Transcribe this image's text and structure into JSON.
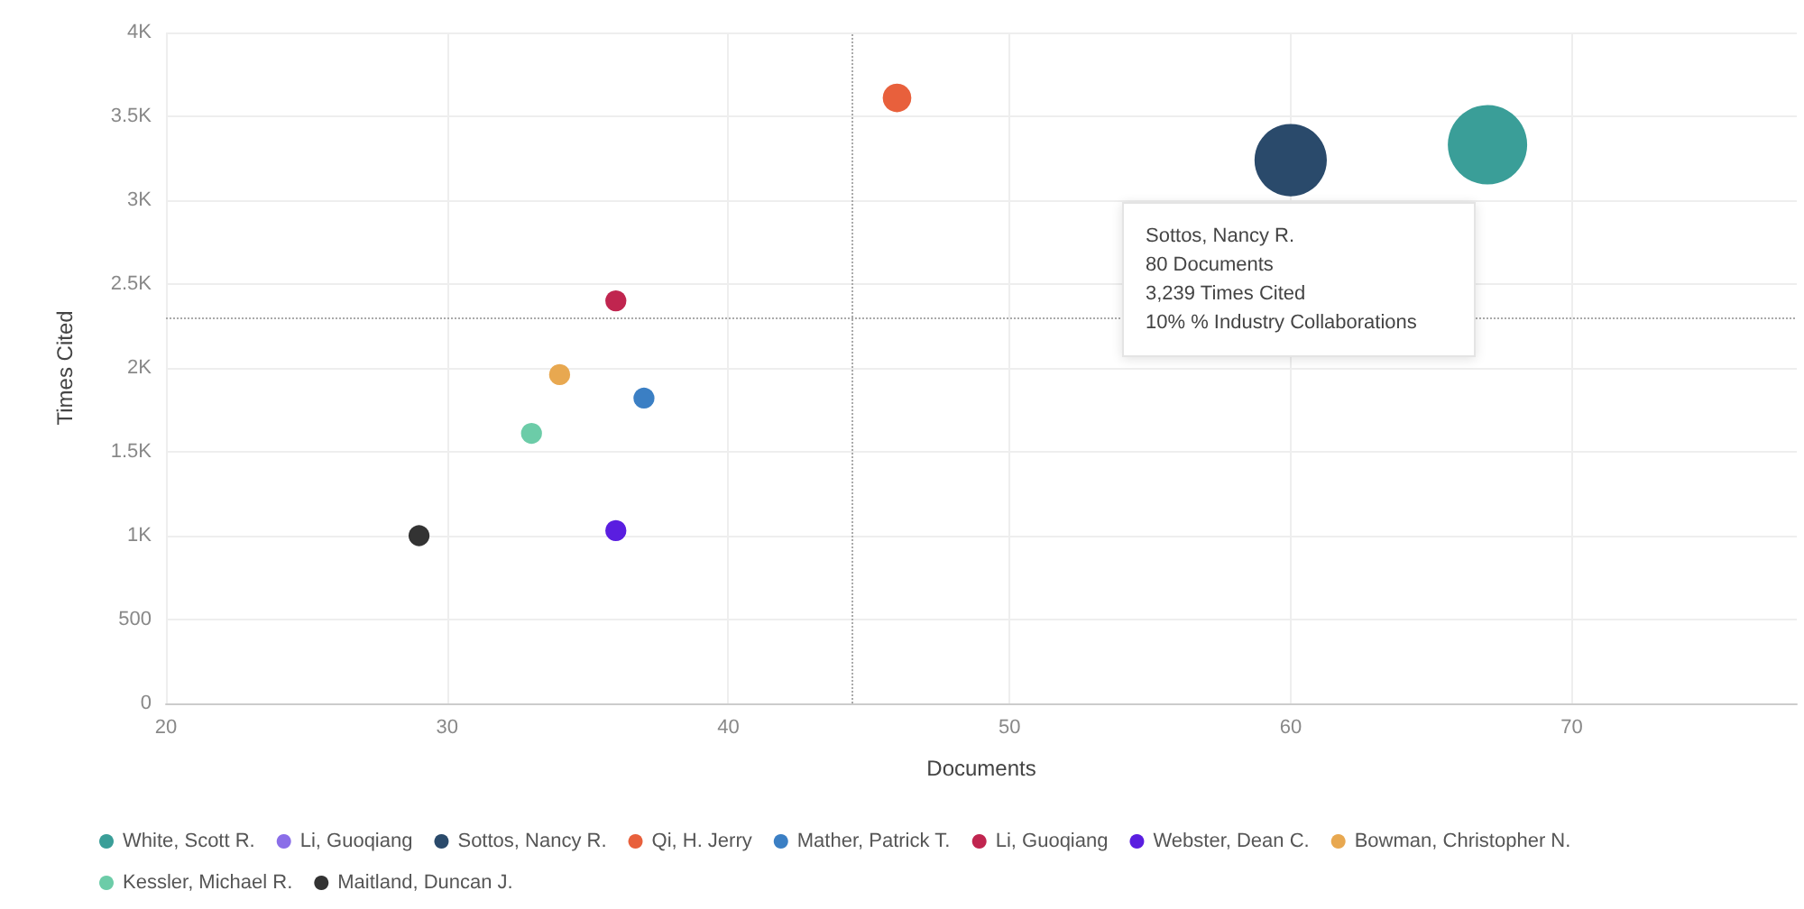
{
  "chart_data": {
    "type": "bubble",
    "xlabel": "Documents",
    "ylabel": "Times Cited",
    "xlim": [
      20,
      78
    ],
    "xticks": [
      20,
      30,
      40,
      50,
      60,
      70
    ],
    "ylim": [
      0,
      4000
    ],
    "yticks": [
      0,
      500,
      {
        "value": 1000,
        "label": "1K"
      },
      {
        "value": 1500,
        "label": "1.5K"
      },
      {
        "value": 2000,
        "label": "2K"
      },
      {
        "value": 2500,
        "label": "2.5K"
      },
      {
        "value": 3000,
        "label": "3K"
      },
      {
        "value": 3500,
        "label": "3.5K"
      },
      {
        "value": 4000,
        "label": "4K"
      }
    ],
    "grid": true,
    "legend": "bottom",
    "marker": "circle",
    "series": [
      {
        "name": "White, Scott R.",
        "color": "#3a9e98",
        "x": [
          67
        ],
        "values": [
          3330
        ],
        "sizes": [
          1
        ]
      },
      {
        "name": "Li, Guoqiang",
        "color": "#8a6ee8",
        "x": [
          null
        ],
        "values": [
          null
        ],
        "sizes": [
          null
        ]
      },
      {
        "name": "Sottos, Nancy R.",
        "color": "#2a4a6b",
        "x": [
          60
        ],
        "values": [
          3239
        ],
        "sizes": [
          0.83
        ]
      },
      {
        "name": "Qi, H. Jerry",
        "color": "#e8603c",
        "x": [
          46
        ],
        "values": [
          3610
        ],
        "sizes": [
          0.13
        ]
      },
      {
        "name": "Mather, Patrick T.",
        "color": "#3b7fc4",
        "x": [
          37
        ],
        "values": [
          1820
        ],
        "sizes": [
          0.07
        ]
      },
      {
        "name": "Li, Guoqiang",
        "color": "#c0254f",
        "x": [
          36
        ],
        "values": [
          2400
        ],
        "sizes": [
          0.07
        ]
      },
      {
        "name": "Webster, Dean C.",
        "color": "#5a1ee0",
        "x": [
          36
        ],
        "values": [
          1030
        ],
        "sizes": [
          0.07
        ]
      },
      {
        "name": "Bowman, Christopher N.",
        "color": "#e8a850",
        "x": [
          34
        ],
        "values": [
          1960
        ],
        "sizes": [
          0.07
        ]
      },
      {
        "name": "Kessler, Michael R.",
        "color": "#6ccca8",
        "x": [
          33
        ],
        "values": [
          1610
        ],
        "sizes": [
          0.07
        ]
      },
      {
        "name": "Maitland, Duncan J.",
        "color": "#333333",
        "x": [
          29
        ],
        "values": [
          1000
        ],
        "sizes": [
          0.07
        ]
      }
    ],
    "ref_lines": [
      {
        "axis": "x",
        "value": 44.4,
        "color": "#aaaaaa",
        "line_style": "dotted"
      },
      {
        "axis": "y",
        "value": 2300,
        "color": "#aaaaaa",
        "line_style": "dotted"
      }
    ],
    "annotations": [
      "Sottos, Nancy R.\n80 Documents\n3,239 Times Cited\n10% % Industry Collaborations"
    ]
  }
}
